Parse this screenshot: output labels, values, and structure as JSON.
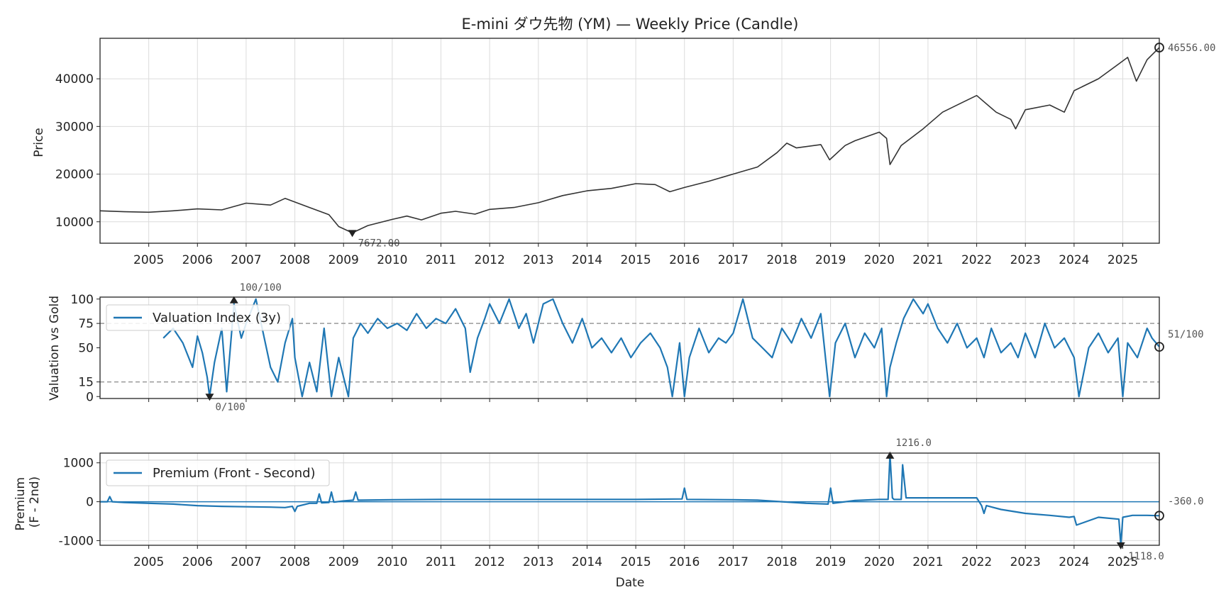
{
  "chart_data": [
    {
      "type": "line",
      "title": "E-mini ダウ先物 (YM) — Weekly Price (Candle)",
      "ylabel": "Price",
      "ylim": [
        5500,
        48500
      ],
      "xlim": [
        2004.0,
        2025.75
      ],
      "yticks": [
        "10000",
        "20000",
        "30000",
        "40000"
      ],
      "xticks": [
        "2005",
        "2006",
        "2007",
        "2008",
        "2009",
        "2010",
        "2011",
        "2012",
        "2013",
        "2014",
        "2015",
        "2016",
        "2017",
        "2018",
        "2019",
        "2020",
        "2021",
        "2022",
        "2023",
        "2024",
        "2025"
      ],
      "grid": true,
      "color": "#333333",
      "series": [
        {
          "x": [
            2004.0,
            2004.5,
            2005.0,
            2005.5,
            2006.0,
            2006.5,
            2007.0,
            2007.5,
            2007.8,
            2008.3,
            2008.7,
            2008.9,
            2009.18,
            2009.5,
            2010.0,
            2010.3,
            2010.6,
            2011.0,
            2011.3,
            2011.7,
            2012.0,
            2012.5,
            2013.0,
            2013.5,
            2014.0,
            2014.5,
            2015.0,
            2015.4,
            2015.7,
            2016.0,
            2016.5,
            2017.0,
            2017.5,
            2017.9,
            2018.1,
            2018.3,
            2018.8,
            2018.98,
            2019.3,
            2019.5,
            2020.0,
            2020.15,
            2020.22,
            2020.45,
            2020.9,
            2021.3,
            2021.7,
            2022.0,
            2022.4,
            2022.7,
            2022.8,
            2023.0,
            2023.5,
            2023.8,
            2024.0,
            2024.5,
            2024.9,
            2025.1,
            2025.28,
            2025.5,
            2025.75
          ],
          "y": [
            12300,
            12100,
            12000,
            12300,
            12700,
            12500,
            13900,
            13500,
            14900,
            13000,
            11500,
            9000,
            7672,
            9200,
            10500,
            11200,
            10400,
            11800,
            12200,
            11600,
            12600,
            13000,
            14000,
            15500,
            16500,
            17000,
            18000,
            17800,
            16300,
            17200,
            18500,
            20000,
            21500,
            24500,
            26500,
            25500,
            26200,
            23000,
            26000,
            27000,
            28800,
            27500,
            22000,
            26000,
            29500,
            33000,
            35000,
            36500,
            33000,
            31500,
            29500,
            33500,
            34500,
            33000,
            37500,
            40000,
            43000,
            44500,
            39500,
            44000,
            46556
          ]
        }
      ],
      "annotations": [
        {
          "label": "7672.00",
          "x": 2009.18,
          "y": 7672,
          "marker": "min"
        },
        {
          "label": "46556.00",
          "x": 2025.75,
          "y": 46556,
          "marker": "last"
        }
      ]
    },
    {
      "type": "line",
      "ylabel": "Valuation vs Gold",
      "ylim": [
        -2,
        102
      ],
      "xlim": [
        2004.0,
        2025.75
      ],
      "yticks": [
        "0",
        "15",
        "50",
        "75",
        "100"
      ],
      "hlines": [
        15,
        75
      ],
      "legend": "upper left",
      "color": "#1f77b4",
      "series": [
        {
          "name": "Valuation Index (3y)",
          "x": [
            2005.3,
            2005.5,
            2005.7,
            2005.9,
            2006.0,
            2006.1,
            2006.2,
            2006.25,
            2006.35,
            2006.5,
            2006.6,
            2006.75,
            2006.9,
            2007.0,
            2007.2,
            2007.35,
            2007.5,
            2007.65,
            2007.8,
            2007.95,
            2008.0,
            2008.15,
            2008.3,
            2008.45,
            2008.6,
            2008.75,
            2008.9,
            2009.0,
            2009.1,
            2009.2,
            2009.35,
            2009.5,
            2009.7,
            2009.9,
            2010.1,
            2010.3,
            2010.5,
            2010.7,
            2010.9,
            2011.1,
            2011.3,
            2011.5,
            2011.6,
            2011.75,
            2011.9,
            2012.0,
            2012.2,
            2012.4,
            2012.6,
            2012.75,
            2012.9,
            2013.1,
            2013.3,
            2013.5,
            2013.7,
            2013.9,
            2014.1,
            2014.3,
            2014.5,
            2014.7,
            2014.9,
            2015.1,
            2015.3,
            2015.5,
            2015.65,
            2015.75,
            2015.9,
            2016.0,
            2016.1,
            2016.3,
            2016.5,
            2016.7,
            2016.85,
            2017.0,
            2017.2,
            2017.4,
            2017.6,
            2017.8,
            2018.0,
            2018.2,
            2018.4,
            2018.6,
            2018.8,
            2018.98,
            2019.1,
            2019.3,
            2019.5,
            2019.7,
            2019.9,
            2020.05,
            2020.15,
            2020.22,
            2020.35,
            2020.5,
            2020.7,
            2020.9,
            2021.0,
            2021.2,
            2021.4,
            2021.6,
            2021.8,
            2022.0,
            2022.15,
            2022.3,
            2022.5,
            2022.7,
            2022.85,
            2023.0,
            2023.2,
            2023.4,
            2023.6,
            2023.8,
            2024.0,
            2024.1,
            2024.3,
            2024.5,
            2024.7,
            2024.9,
            2025.0,
            2025.1,
            2025.3,
            2025.5,
            2025.6,
            2025.75
          ],
          "y": [
            60,
            70,
            55,
            30,
            62,
            45,
            20,
            0,
            35,
            70,
            5,
            95,
            60,
            75,
            100,
            65,
            30,
            15,
            55,
            80,
            40,
            0,
            35,
            5,
            70,
            0,
            40,
            20,
            0,
            60,
            75,
            65,
            80,
            70,
            75,
            68,
            85,
            70,
            80,
            75,
            90,
            70,
            25,
            60,
            80,
            95,
            75,
            100,
            70,
            85,
            55,
            95,
            100,
            75,
            55,
            80,
            50,
            60,
            45,
            60,
            40,
            55,
            65,
            50,
            30,
            0,
            55,
            0,
            40,
            70,
            45,
            60,
            55,
            65,
            100,
            60,
            50,
            40,
            70,
            55,
            80,
            60,
            85,
            0,
            55,
            75,
            40,
            65,
            50,
            70,
            0,
            30,
            55,
            80,
            100,
            85,
            95,
            70,
            55,
            75,
            50,
            60,
            40,
            70,
            45,
            55,
            40,
            65,
            40,
            75,
            50,
            60,
            40,
            0,
            50,
            65,
            45,
            60,
            0,
            55,
            40,
            70,
            60,
            51
          ]
        }
      ],
      "annotations": [
        {
          "label": "100/100",
          "x": 2006.75,
          "y": 100,
          "marker": "max"
        },
        {
          "label": "0/100",
          "x": 2006.25,
          "y": 0,
          "marker": "min"
        },
        {
          "label": "51/100",
          "x": 2025.75,
          "y": 51,
          "marker": "last"
        }
      ]
    },
    {
      "type": "line",
      "ylabel": "Premium\n(F - 2nd)",
      "xlabel": "Date",
      "ylim": [
        -1120,
        1250
      ],
      "xlim": [
        2004.0,
        2025.75
      ],
      "yticks": [
        "1000",
        "0",
        "-1000"
      ],
      "xticks": [
        "2005",
        "2006",
        "2007",
        "2008",
        "2009",
        "2010",
        "2011",
        "2012",
        "2013",
        "2014",
        "2015",
        "2016",
        "2017",
        "2018",
        "2019",
        "2020",
        "2021",
        "2022",
        "2023",
        "2024",
        "2025"
      ],
      "hlines": [
        0
      ],
      "legend": "upper left",
      "color": "#1f77b4",
      "series": [
        {
          "name": "Premium (Front - Second)",
          "x": [
            2004.0,
            2004.15,
            2004.2,
            2004.25,
            2004.5,
            2005.0,
            2005.5,
            2006.0,
            2006.5,
            2007.0,
            2007.5,
            2007.8,
            2007.95,
            2008.0,
            2008.05,
            2008.3,
            2008.45,
            2008.5,
            2008.55,
            2008.7,
            2008.75,
            2008.8,
            2009.0,
            2009.2,
            2009.25,
            2009.3,
            2010.0,
            2011.0,
            2012.0,
            2013.0,
            2014.0,
            2015.0,
            2015.95,
            2016.0,
            2016.05,
            2017.0,
            2017.5,
            2018.0,
            2018.5,
            2018.95,
            2019.0,
            2019.05,
            2019.5,
            2020.0,
            2020.18,
            2020.22,
            2020.27,
            2020.3,
            2020.45,
            2020.48,
            2020.55,
            2021.0,
            2021.5,
            2022.0,
            2022.1,
            2022.15,
            2022.2,
            2022.5,
            2023.0,
            2023.5,
            2023.9,
            2024.0,
            2024.05,
            2024.5,
            2024.92,
            2024.96,
            2025.0,
            2025.2,
            2025.5,
            2025.75
          ],
          "y": [
            0,
            0,
            130,
            0,
            -20,
            -40,
            -60,
            -100,
            -120,
            -130,
            -140,
            -150,
            -120,
            -250,
            -120,
            -40,
            -40,
            200,
            -30,
            -20,
            250,
            -10,
            20,
            40,
            250,
            40,
            50,
            60,
            60,
            60,
            60,
            60,
            70,
            350,
            60,
            50,
            40,
            0,
            -40,
            -60,
            350,
            -40,
            30,
            60,
            60,
            1216,
            100,
            60,
            60,
            950,
            100,
            100,
            100,
            100,
            -100,
            -300,
            -100,
            -200,
            -300,
            -350,
            -400,
            -380,
            -600,
            -400,
            -450,
            -1118,
            -400,
            -350,
            -350,
            -360
          ]
        }
      ],
      "annotations": [
        {
          "label": "1216.0",
          "x": 2020.22,
          "y": 1216,
          "marker": "max"
        },
        {
          "label": "-1118.0",
          "x": 2024.96,
          "y": -1118,
          "marker": "min"
        },
        {
          "label": "-360.0",
          "x": 2025.75,
          "y": -360,
          "marker": "last"
        }
      ]
    }
  ]
}
